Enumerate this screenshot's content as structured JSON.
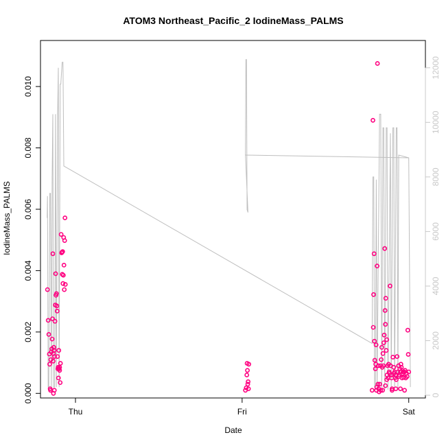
{
  "chart_data": {
    "type": "scatter",
    "title": "ATOM3 Northeast_Pacific_2 IodineMass_PALMS",
    "xlabel": "Date",
    "ylabel": "IodineMass_PALMS",
    "x_ticks": [
      {
        "value": 1,
        "label": "Thu"
      },
      {
        "value": 2,
        "label": "Fri"
      },
      {
        "value": 3,
        "label": "Sat"
      }
    ],
    "xlim": [
      0.79,
      3.1
    ],
    "ylim": [
      -0.00015,
      0.0115
    ],
    "y_ticks": [
      0.0,
      0.002,
      0.004,
      0.006,
      0.008,
      0.01
    ],
    "y_tick_labels": [
      "0.000",
      "0.002",
      "0.004",
      "0.006",
      "0.008",
      "0.010"
    ],
    "y2lim": [
      -100,
      13000
    ],
    "y2_ticks": [
      0,
      2000,
      4000,
      6000,
      8000,
      10000,
      12000
    ],
    "y2_tick_labels": [
      "0",
      "2000",
      "4000",
      "6000",
      "8000",
      "10000",
      "12000"
    ],
    "grid": false,
    "colors": {
      "points": "#ff0080",
      "line": "#bebebe",
      "secondary_axis": "#c8c8c8"
    },
    "series": [
      {
        "kind": "points",
        "axis": "left",
        "values": [
          [
            0.832,
            0.00338
          ],
          [
            0.836,
            0.00238
          ],
          [
            0.84,
            0.00192
          ],
          [
            0.843,
            0.00128
          ],
          [
            0.845,
            0.00095
          ],
          [
            0.848,
            0.00015
          ],
          [
            0.852,
            0.0011
          ],
          [
            0.855,
            0.00135
          ],
          [
            0.858,
            0.00145
          ],
          [
            0.86,
            0.00177
          ],
          [
            0.862,
            0.00243
          ],
          [
            0.864,
            0.00455
          ],
          [
            0.866,
            0.00105
          ],
          [
            0.868,
            0.0013
          ],
          [
            0.87,
            0.0015
          ],
          [
            0.872,
            0.0014
          ],
          [
            0.874,
            0.0012
          ],
          [
            0.877,
            0.00235
          ],
          [
            0.879,
            0.00288
          ],
          [
            0.881,
            0.0039
          ],
          [
            0.883,
            0.0032
          ],
          [
            0.886,
            0.00325
          ],
          [
            0.888,
            0.00285
          ],
          [
            0.89,
            0.00268
          ],
          [
            0.892,
            0.0012
          ],
          [
            0.894,
            0.0008
          ],
          [
            0.896,
            0.00085
          ],
          [
            0.898,
            0.0005
          ],
          [
            0.9,
            0.0014
          ],
          [
            0.902,
            0.0008
          ],
          [
            0.905,
            0.00085
          ],
          [
            0.908,
            0.00035
          ],
          [
            0.91,
            0.00098
          ],
          [
            0.914,
            0.00518
          ],
          [
            0.917,
            0.00458
          ],
          [
            0.919,
            0.0046
          ],
          [
            0.921,
            0.00388
          ],
          [
            0.923,
            0.00462
          ],
          [
            0.925,
            0.00358
          ],
          [
            0.927,
            0.00385
          ],
          [
            0.929,
            0.00508
          ],
          [
            0.931,
            0.00418
          ],
          [
            0.933,
            0.00338
          ],
          [
            0.935,
            0.00498
          ],
          [
            0.937,
            0.00572
          ],
          [
            0.939,
            0.00355
          ],
          [
            0.85,
            0.0001
          ],
          [
            0.868,
            0.0
          ],
          [
            0.873,
            0.0001
          ],
          [
            0.905,
            0.00075
          ],
          [
            2.02,
            0.0001
          ],
          [
            2.025,
            0.00018
          ],
          [
            2.028,
            0.0006
          ],
          [
            2.03,
            0.00098
          ],
          [
            2.032,
            0.00075
          ],
          [
            2.034,
            0.0003
          ],
          [
            2.036,
            0.00038
          ],
          [
            2.038,
            0.00015
          ],
          [
            2.04,
            0.00095
          ],
          [
            2.78,
            0.0001
          ],
          [
            2.785,
            0.0089
          ],
          [
            2.787,
            0.00215
          ],
          [
            2.789,
            0.00322
          ],
          [
            2.792,
            0.00455
          ],
          [
            2.794,
            0.0017
          ],
          [
            2.796,
            0.00108
          ],
          [
            2.8,
            0.0008
          ],
          [
            2.802,
            0.00095
          ],
          [
            2.804,
            0.00158
          ],
          [
            2.806,
            0.0001
          ],
          [
            2.808,
            0.0002
          ],
          [
            2.81,
            0.00415
          ],
          [
            2.812,
            0.01075
          ],
          [
            2.815,
            0.0003
          ],
          [
            2.818,
            0.0009
          ],
          [
            2.822,
            5e-05
          ],
          [
            2.826,
            0.0003
          ],
          [
            2.83,
            0.0009
          ],
          [
            2.835,
            0.0011
          ],
          [
            2.838,
            0.0015
          ],
          [
            2.841,
            0.00085
          ],
          [
            2.845,
            0.0013
          ],
          [
            2.848,
            0.0009
          ],
          [
            2.85,
            0.00165
          ],
          [
            2.853,
            0.0019
          ],
          [
            2.856,
            0.00472
          ],
          [
            2.858,
            0.0027
          ],
          [
            2.86,
            0.00225
          ],
          [
            2.862,
            0.0031
          ],
          [
            2.865,
            0.0014
          ],
          [
            2.868,
            0.00175
          ],
          [
            2.87,
            0.0006
          ],
          [
            2.873,
            0.0009
          ],
          [
            2.876,
            0.0005
          ],
          [
            2.879,
            0.00095
          ],
          [
            2.882,
            0.0007
          ],
          [
            2.885,
            0.00065
          ],
          [
            2.888,
            0.0035
          ],
          [
            2.891,
            0.0009
          ],
          [
            2.894,
            0.0006
          ],
          [
            2.897,
            0.0005
          ],
          [
            2.9,
            0.00015
          ],
          [
            2.905,
            0.00118
          ],
          [
            2.91,
            0.00085
          ],
          [
            2.912,
            0.00065
          ],
          [
            2.915,
            0.0007
          ],
          [
            2.918,
            0.0005
          ],
          [
            2.92,
            0.0006
          ],
          [
            2.922,
            0.00015
          ],
          [
            2.925,
            0.00045
          ],
          [
            2.93,
            0.0012
          ],
          [
            2.935,
            0.0007
          ],
          [
            2.938,
            0.0009
          ],
          [
            2.941,
            0.00055
          ],
          [
            2.944,
            0.0006
          ],
          [
            2.947,
            0.0008
          ],
          [
            2.95,
            0.0007
          ],
          [
            2.953,
            0.00095
          ],
          [
            2.956,
            0.00085
          ],
          [
            2.96,
            0.0005
          ],
          [
            2.963,
            0.00065
          ],
          [
            2.966,
            0.0007
          ],
          [
            2.97,
            0.00052
          ],
          [
            2.974,
            0.0007
          ],
          [
            2.978,
            0.00075
          ],
          [
            2.982,
            0.0005
          ],
          [
            2.986,
            0.00065
          ],
          [
            2.99,
            0.00055
          ],
          [
            2.994,
            0.00206
          ],
          [
            2.997,
            0.00127
          ],
          [
            3.0,
            0.0007
          ],
          [
            2.843,
            0.0001
          ],
          [
            2.86,
            0.00025
          ],
          [
            2.9,
            0.0001
          ],
          [
            2.95,
            0.00015
          ],
          [
            2.975,
            0.0001
          ],
          [
            2.82,
            0.00015
          ],
          [
            2.832,
            0.0001
          ],
          [
            2.868,
            0.00045
          ]
        ]
      },
      {
        "kind": "line",
        "axis": "right",
        "values": [
          [
            0.83,
            6500
          ],
          [
            0.832,
            7300
          ],
          [
            0.836,
            300
          ],
          [
            0.84,
            200
          ],
          [
            0.846,
            7400
          ],
          [
            0.85,
            7400
          ],
          [
            0.855,
            200
          ],
          [
            0.86,
            8000
          ],
          [
            0.864,
            10300
          ],
          [
            0.868,
            300
          ],
          [
            0.875,
            300
          ],
          [
            0.88,
            10300
          ],
          [
            0.885,
            300
          ],
          [
            0.893,
            10300
          ],
          [
            0.897,
            12000
          ],
          [
            0.902,
            300
          ],
          [
            0.908,
            11400
          ],
          [
            0.912,
            11400
          ],
          [
            0.92,
            12200
          ],
          [
            0.925,
            12200
          ],
          [
            0.93,
            8400
          ],
          [
            2.78,
            1900
          ],
          [
            2.785,
            8000
          ],
          [
            2.79,
            8000
          ],
          [
            2.795,
            300
          ],
          [
            2.8,
            200
          ],
          [
            2.805,
            7900
          ],
          [
            2.81,
            200
          ],
          [
            2.825,
            10300
          ],
          [
            2.832,
            10300
          ],
          [
            2.838,
            200
          ],
          [
            2.845,
            9800
          ],
          [
            2.85,
            9800
          ],
          [
            2.856,
            200
          ],
          [
            2.865,
            9800
          ],
          [
            2.87,
            9800
          ],
          [
            2.875,
            200
          ],
          [
            2.89,
            9600
          ],
          [
            2.895,
            200
          ],
          [
            2.905,
            9800
          ],
          [
            2.91,
            9800
          ],
          [
            2.915,
            200
          ],
          [
            2.925,
            9800
          ],
          [
            2.93,
            9800
          ],
          [
            2.935,
            200
          ],
          [
            2.94,
            8800
          ],
          [
            3.0,
            8700
          ],
          [
            3.01,
            300
          ]
        ]
      },
      {
        "kind": "line",
        "axis": "right",
        "values": [
          [
            2.02,
            8800
          ],
          [
            2.023,
            12300
          ],
          [
            2.026,
            12300
          ],
          [
            2.03,
            6800
          ],
          [
            2.035,
            6700
          ],
          [
            2.02,
            8800
          ],
          [
            3.0,
            8700
          ]
        ]
      }
    ]
  }
}
